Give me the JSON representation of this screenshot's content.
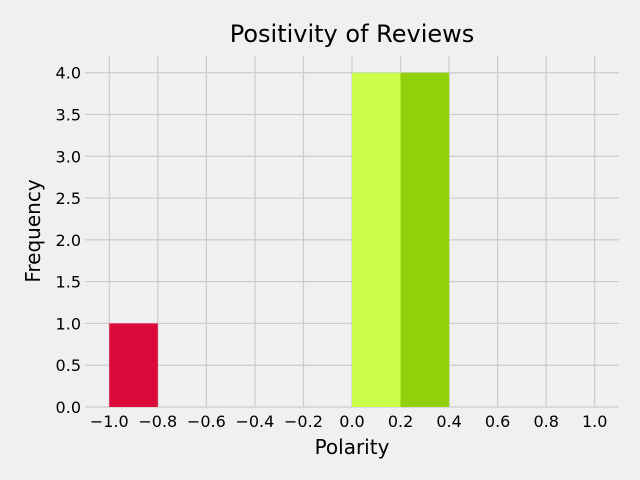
{
  "chart_data": {
    "type": "bar",
    "title": "Positivity of Reviews",
    "xlabel": "Polarity",
    "ylabel": "Frequency",
    "xlim": [
      -1.1,
      1.1
    ],
    "ylim": [
      0,
      4.2
    ],
    "grid": true,
    "xticks": [
      -1.0,
      -0.8,
      -0.6,
      -0.4,
      -0.2,
      0.0,
      0.2,
      0.4,
      0.6,
      0.8,
      1.0
    ],
    "xtick_labels": [
      "−1.0",
      "−0.8",
      "−0.6",
      "−0.4",
      "−0.2",
      "0.0",
      "0.2",
      "0.4",
      "0.6",
      "0.8",
      "1.0"
    ],
    "yticks": [
      0.0,
      0.5,
      1.0,
      1.5,
      2.0,
      2.5,
      3.0,
      3.5,
      4.0
    ],
    "ytick_labels": [
      "0.0",
      "0.5",
      "1.0",
      "1.5",
      "2.0",
      "2.5",
      "3.0",
      "3.5",
      "4.0"
    ],
    "bins": [
      {
        "x0": -1.0,
        "x1": -0.8,
        "value": 1,
        "color": "#dc0a3a"
      },
      {
        "x0": 0.0,
        "x1": 0.2,
        "value": 4,
        "color": "#ccff4a"
      },
      {
        "x0": 0.2,
        "x1": 0.4,
        "value": 4,
        "color": "#91d10c"
      }
    ]
  }
}
